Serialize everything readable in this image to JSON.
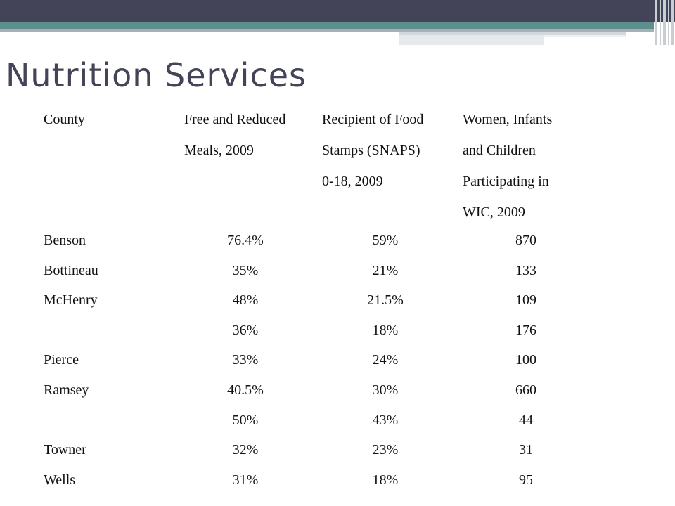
{
  "slide": {
    "title": "Nutrition Services"
  },
  "table": {
    "headers": [
      [
        "County"
      ],
      [
        "Free and Reduced",
        "Meals, 2009"
      ],
      [
        "Recipient of Food",
        "Stamps (SNAPS)",
        "0-18, 2009"
      ],
      [
        "Women, Infants",
        "and Children",
        "Participating in",
        "WIC, 2009"
      ]
    ],
    "rows": [
      {
        "county": "Benson",
        "free_reduced": "76.4%",
        "snap": "59%",
        "wic": "870"
      },
      {
        "county": "Bottineau",
        "free_reduced": "35%",
        "snap": "21%",
        "wic": "133"
      },
      {
        "county": "McHenry",
        "free_reduced": "48%",
        "snap": "21.5%",
        "wic": "109"
      },
      {
        "county": "",
        "free_reduced": "36%",
        "snap": "18%",
        "wic": "176"
      },
      {
        "county": "Pierce",
        "free_reduced": "33%",
        "snap": "24%",
        "wic": "100"
      },
      {
        "county": "Ramsey",
        "free_reduced": "40.5%",
        "snap": "30%",
        "wic": "660"
      },
      {
        "county": "",
        "free_reduced": "50%",
        "snap": "43%",
        "wic": "44"
      },
      {
        "county": "Towner",
        "free_reduced": "32%",
        "snap": "23%",
        "wic": "31"
      },
      {
        "county": "Wells",
        "free_reduced": "31%",
        "snap": "18%",
        "wic": "95"
      }
    ]
  }
}
